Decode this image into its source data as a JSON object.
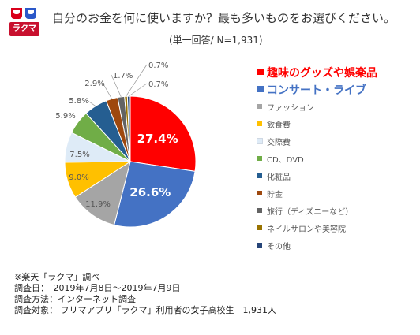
{
  "header": {
    "logo_text": "ラクマ",
    "title": "自分のお金を何に使いますか？最も多いものをお選びください。",
    "subtitle": "(単一回答/ N=1,931)"
  },
  "chart_data": {
    "type": "pie",
    "title": "自分のお金を何に使いますか？最も多いものをお選びください。",
    "start": "12-oclock",
    "direction": "clockwise",
    "legend_position": "right",
    "series": [
      {
        "name": "趣味のグッズや娯楽品",
        "value": 27.4,
        "label": "27.4%",
        "color": "#ff0000",
        "label_inside": true,
        "emphasis": "red-large"
      },
      {
        "name": "コンサート・ライブ",
        "value": 26.6,
        "label": "26.6%",
        "color": "#4472c4",
        "label_inside": true,
        "emphasis": "blue-large"
      },
      {
        "name": "ファッション",
        "value": 11.9,
        "label": "11.9%",
        "color": "#a5a5a5",
        "label_inside": false
      },
      {
        "name": "飲食費",
        "value": 9.0,
        "label": "9.0%",
        "color": "#ffc000",
        "label_inside": false
      },
      {
        "name": "交際費",
        "value": 7.5,
        "label": "7.5%",
        "color": "#deebf7",
        "label_inside": false
      },
      {
        "name": "CD、DVD",
        "value": 5.9,
        "label": "5.9%",
        "color": "#70ad47",
        "label_inside": false
      },
      {
        "name": "化粧品",
        "value": 5.8,
        "label": "5.8%",
        "color": "#255e91",
        "label_inside": false
      },
      {
        "name": "貯金",
        "value": 2.9,
        "label": "2.9%",
        "color": "#9e480e",
        "label_inside": false
      },
      {
        "name": "旅行（ディズニーなど）",
        "value": 1.7,
        "label": "1.7%",
        "color": "#636363",
        "label_inside": false
      },
      {
        "name": "ネイルサロンや美容院",
        "value": 0.7,
        "label": "0.7%",
        "color": "#997300",
        "label_inside": false
      },
      {
        "name": "その他",
        "value": 0.7,
        "label": "0.7%",
        "color": "#264478",
        "label_inside": false
      }
    ]
  },
  "notes": {
    "source": "※楽天「ラクマ」調べ",
    "date": "調査日：　2019年7月8日～2019年7月9日",
    "method": "調査方法：インターネット調査",
    "target": "調査対象：  フリマアプリ「ラクマ」利用者の女子高校生　1,931人"
  }
}
